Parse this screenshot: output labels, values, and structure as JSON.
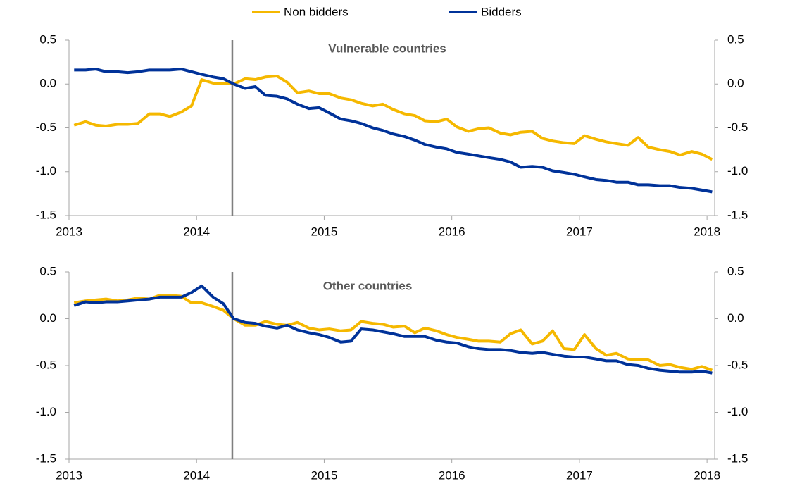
{
  "chart_data": [
    {
      "type": "line",
      "title": "Vulnerable countries",
      "x": [
        2013.04,
        2013.13,
        2013.21,
        2013.29,
        2013.38,
        2013.46,
        2013.54,
        2013.63,
        2013.71,
        2013.79,
        2013.88,
        2013.96,
        2014.04,
        2014.13,
        2014.21,
        2014.29,
        2014.38,
        2014.46,
        2014.54,
        2014.63,
        2014.71,
        2014.79,
        2014.88,
        2014.96,
        2015.04,
        2015.13,
        2015.21,
        2015.29,
        2015.38,
        2015.46,
        2015.54,
        2015.63,
        2015.71,
        2015.79,
        2015.88,
        2015.96,
        2016.04,
        2016.13,
        2016.21,
        2016.29,
        2016.38,
        2016.46,
        2016.54,
        2016.63,
        2016.71,
        2016.79,
        2016.88,
        2016.96,
        2017.04,
        2017.13,
        2017.21,
        2017.29,
        2017.38,
        2017.46,
        2017.54,
        2017.63,
        2017.71,
        2017.79,
        2017.88,
        2017.96,
        2018.04
      ],
      "series": [
        {
          "name": "Non bidders",
          "color": "#f5b800",
          "values": [
            -0.47,
            -0.43,
            -0.47,
            -0.48,
            -0.46,
            -0.46,
            -0.45,
            -0.34,
            -0.34,
            -0.37,
            -0.32,
            -0.25,
            0.05,
            0.01,
            0.01,
            0.0,
            0.06,
            0.05,
            0.08,
            0.09,
            0.02,
            -0.1,
            -0.08,
            -0.11,
            -0.11,
            -0.16,
            -0.18,
            -0.22,
            -0.25,
            -0.23,
            -0.29,
            -0.34,
            -0.36,
            -0.42,
            -0.43,
            -0.4,
            -0.49,
            -0.54,
            -0.51,
            -0.5,
            -0.56,
            -0.58,
            -0.55,
            -0.54,
            -0.62,
            -0.65,
            -0.67,
            -0.68,
            -0.59,
            -0.63,
            -0.66,
            -0.68,
            -0.7,
            -0.61,
            -0.72,
            -0.75,
            -0.77,
            -0.81,
            -0.77,
            -0.8,
            -0.86
          ]
        },
        {
          "name": "Bidders",
          "color": "#003299",
          "values": [
            0.16,
            0.16,
            0.17,
            0.14,
            0.14,
            0.13,
            0.14,
            0.16,
            0.16,
            0.16,
            0.17,
            0.14,
            0.11,
            0.08,
            0.06,
            0.0,
            -0.05,
            -0.03,
            -0.13,
            -0.14,
            -0.17,
            -0.23,
            -0.28,
            -0.27,
            -0.33,
            -0.4,
            -0.42,
            -0.45,
            -0.5,
            -0.53,
            -0.57,
            -0.6,
            -0.64,
            -0.69,
            -0.72,
            -0.74,
            -0.78,
            -0.8,
            -0.82,
            -0.84,
            -0.86,
            -0.89,
            -0.95,
            -0.94,
            -0.95,
            -0.99,
            -1.01,
            -1.03,
            -1.06,
            -1.09,
            -1.1,
            -1.12,
            -1.12,
            -1.15,
            -1.15,
            -1.16,
            -1.16,
            -1.18,
            -1.19,
            -1.21,
            -1.23
          ]
        }
      ],
      "xlim": [
        2013,
        2018.06
      ],
      "xticks": [
        2013,
        2014,
        2015,
        2016,
        2017,
        2018
      ],
      "ylim": [
        -1.5,
        0.5
      ],
      "yticks": [
        0.5,
        {
          "value": 0,
          "label": "0.0"
        },
        -0.5,
        {
          "value": -1,
          "label": "-1.0"
        },
        -1.5
      ],
      "vline": 2014.28
    },
    {
      "type": "line",
      "title": "Other countries",
      "x": [
        2013.04,
        2013.13,
        2013.21,
        2013.29,
        2013.38,
        2013.46,
        2013.54,
        2013.63,
        2013.71,
        2013.79,
        2013.88,
        2013.96,
        2014.04,
        2014.13,
        2014.21,
        2014.29,
        2014.38,
        2014.46,
        2014.54,
        2014.63,
        2014.71,
        2014.79,
        2014.88,
        2014.96,
        2015.04,
        2015.13,
        2015.21,
        2015.29,
        2015.38,
        2015.46,
        2015.54,
        2015.63,
        2015.71,
        2015.79,
        2015.88,
        2015.96,
        2016.04,
        2016.13,
        2016.21,
        2016.29,
        2016.38,
        2016.46,
        2016.54,
        2016.63,
        2016.71,
        2016.79,
        2016.88,
        2016.96,
        2017.04,
        2017.13,
        2017.21,
        2017.29,
        2017.38,
        2017.46,
        2017.54,
        2017.63,
        2017.71,
        2017.79,
        2017.88,
        2017.96,
        2018.04
      ],
      "series": [
        {
          "name": "Non bidders",
          "color": "#f5b800",
          "values": [
            0.17,
            0.19,
            0.2,
            0.21,
            0.19,
            0.2,
            0.22,
            0.21,
            0.25,
            0.25,
            0.24,
            0.17,
            0.17,
            0.13,
            0.09,
            0.0,
            -0.07,
            -0.07,
            -0.03,
            -0.06,
            -0.07,
            -0.04,
            -0.1,
            -0.12,
            -0.11,
            -0.13,
            -0.12,
            -0.03,
            -0.05,
            -0.06,
            -0.09,
            -0.08,
            -0.15,
            -0.1,
            -0.13,
            -0.17,
            -0.2,
            -0.22,
            -0.24,
            -0.24,
            -0.25,
            -0.16,
            -0.12,
            -0.27,
            -0.24,
            -0.13,
            -0.32,
            -0.33,
            -0.17,
            -0.32,
            -0.39,
            -0.37,
            -0.43,
            -0.44,
            -0.44,
            -0.5,
            -0.49,
            -0.52,
            -0.54,
            -0.51,
            -0.55
          ]
        },
        {
          "name": "Bidders",
          "color": "#003299",
          "values": [
            0.14,
            0.18,
            0.17,
            0.18,
            0.18,
            0.19,
            0.2,
            0.21,
            0.23,
            0.23,
            0.23,
            0.28,
            0.35,
            0.23,
            0.16,
            0.0,
            -0.04,
            -0.05,
            -0.08,
            -0.1,
            -0.07,
            -0.12,
            -0.15,
            -0.17,
            -0.2,
            -0.25,
            -0.24,
            -0.11,
            -0.12,
            -0.14,
            -0.16,
            -0.19,
            -0.19,
            -0.19,
            -0.23,
            -0.25,
            -0.26,
            -0.3,
            -0.32,
            -0.33,
            -0.33,
            -0.34,
            -0.36,
            -0.37,
            -0.36,
            -0.38,
            -0.4,
            -0.41,
            -0.41,
            -0.43,
            -0.45,
            -0.45,
            -0.49,
            -0.5,
            -0.53,
            -0.55,
            -0.56,
            -0.57,
            -0.57,
            -0.56,
            -0.58
          ]
        }
      ],
      "xlim": [
        2013,
        2018.06
      ],
      "xticks": [
        2013,
        2014,
        2015,
        2016,
        2017,
        2018
      ],
      "ylim": [
        -1.5,
        0.5
      ],
      "yticks": [
        0.5,
        {
          "value": 0,
          "label": "0.0"
        },
        -0.5,
        {
          "value": -1,
          "label": "-1.0"
        },
        -1.5
      ],
      "vline": 2014.28
    }
  ]
}
